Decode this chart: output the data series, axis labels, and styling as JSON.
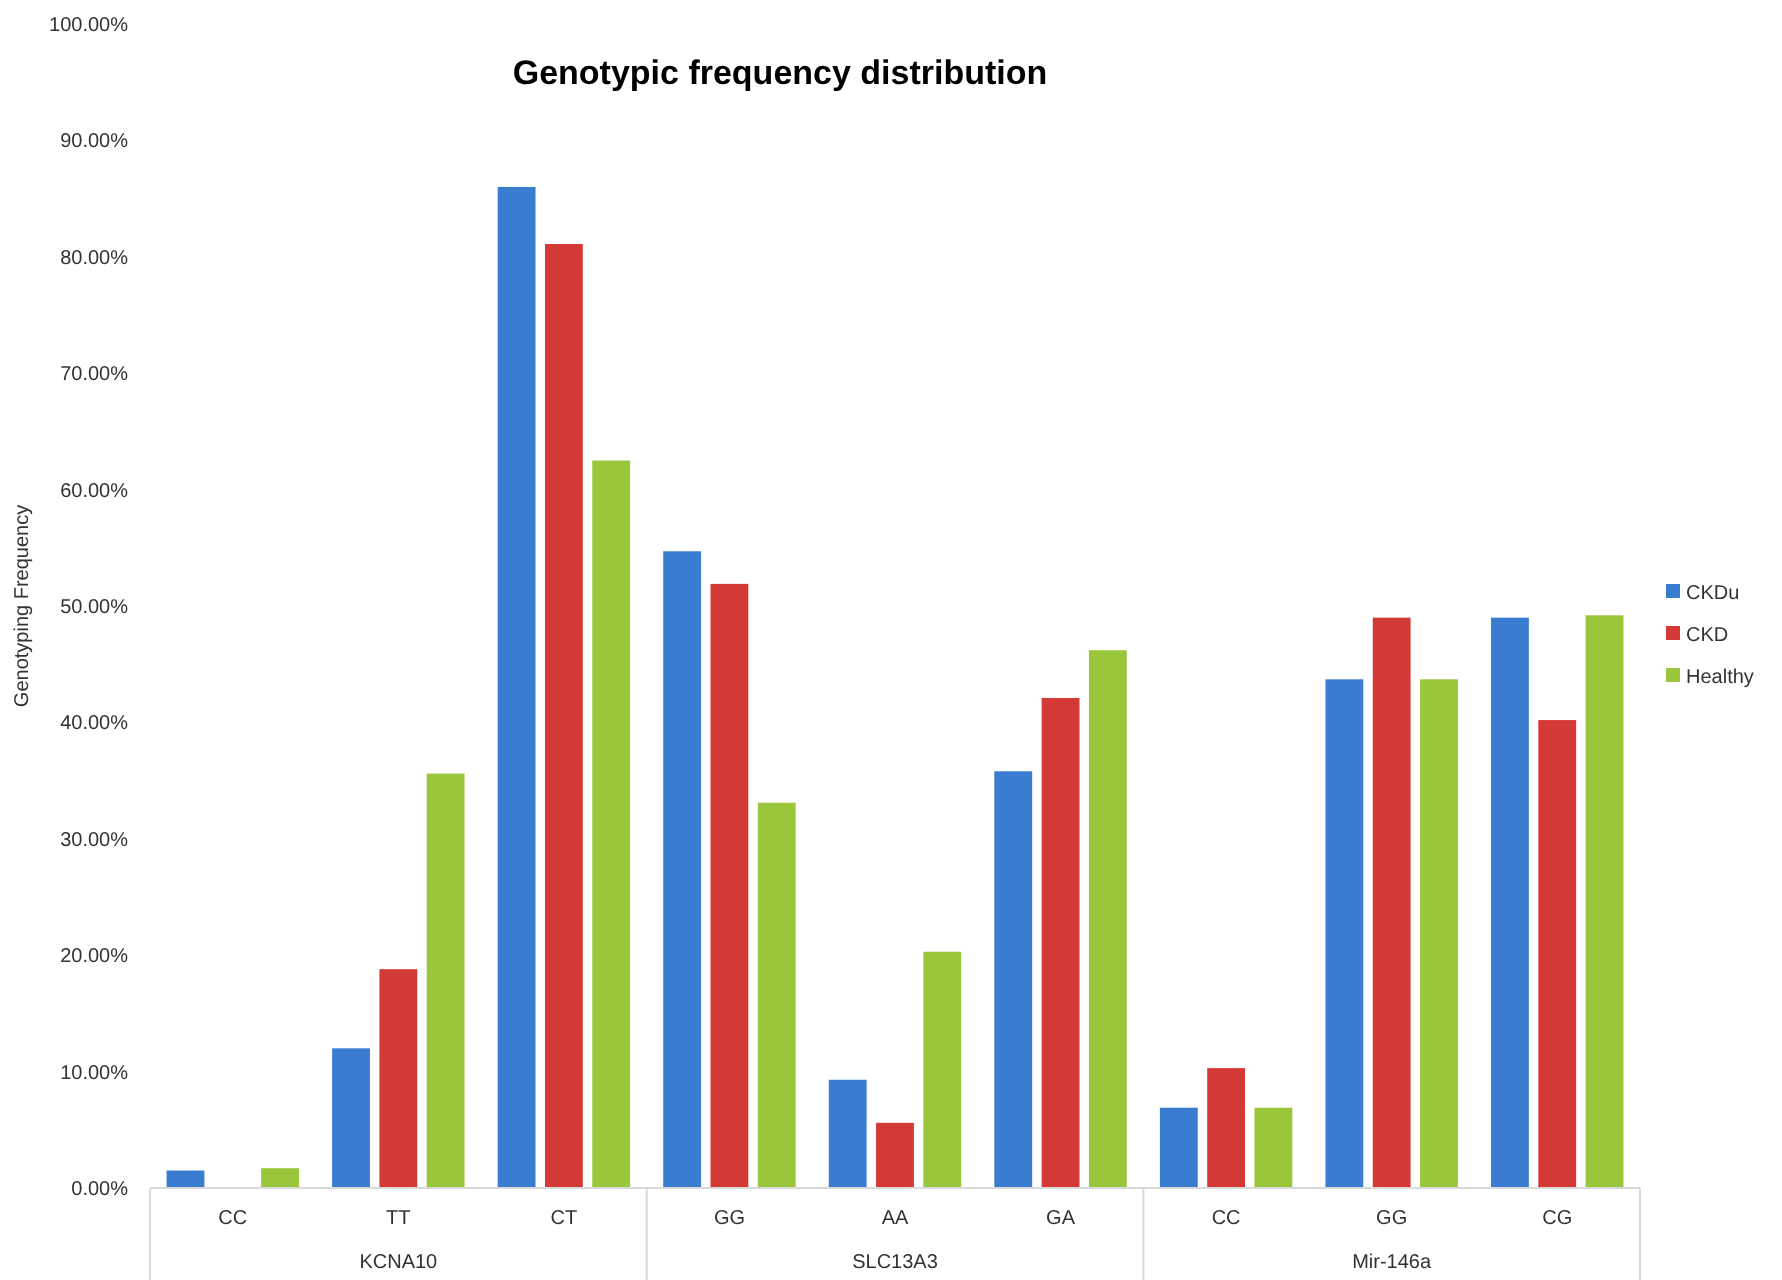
{
  "chart_data": {
    "type": "bar",
    "title": "Genotypic frequency distribution",
    "ylabel": "Genotyping Frequency",
    "categories": [
      "CC",
      "TT",
      "CT",
      "GG",
      "AA",
      "GA",
      "CC",
      "GG",
      "CG"
    ],
    "annotations": [
      "KCNA10",
      "SLC13A3",
      "Mir-146a"
    ],
    "series": [
      {
        "name": "CKDu",
        "color": "#3a7dd0",
        "values": [
          1.5,
          12.0,
          86.0,
          54.7,
          9.3,
          35.8,
          6.9,
          43.7,
          49.0
        ]
      },
      {
        "name": "CKD",
        "color": "#d43a35",
        "values": [
          0,
          18.8,
          81.1,
          51.9,
          5.6,
          42.1,
          10.3,
          49.0,
          40.2
        ]
      },
      {
        "name": "Healthy",
        "color": "#9ac63c",
        "values": [
          1.7,
          35.6,
          62.5,
          33.1,
          20.3,
          46.2,
          6.9,
          43.7,
          49.2
        ]
      }
    ],
    "ylim": [
      0,
      100
    ],
    "yticks": [
      {
        "value": 0,
        "label": "0.00%"
      },
      {
        "value": 10,
        "label": "10.00%"
      },
      {
        "value": 20,
        "label": "20.00%"
      },
      {
        "value": 30,
        "label": "30.00%"
      },
      {
        "value": 40,
        "label": "40.00%"
      },
      {
        "value": 50,
        "label": "50.00%"
      },
      {
        "value": 60,
        "label": "60.00%"
      },
      {
        "value": 70,
        "label": "70.00%"
      },
      {
        "value": 80,
        "label": "80.00%"
      },
      {
        "value": 90,
        "label": "90.00%"
      },
      {
        "value": 100,
        "label": "100.00%"
      }
    ],
    "legend": "right",
    "grid": false
  }
}
